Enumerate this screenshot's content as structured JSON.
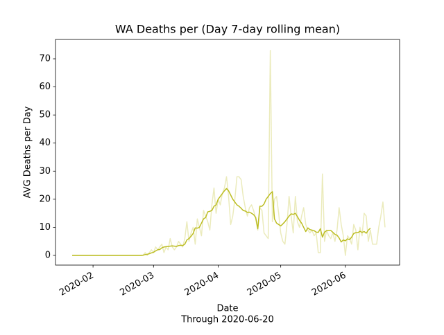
{
  "chart_data": {
    "type": "line",
    "title": "WA Deaths per (Day 7-day rolling mean)",
    "xlabel": "Date",
    "subtitle": "Through 2020-06-20",
    "ylabel": "AVG Deaths per Day",
    "x": [
      "2020-01-22",
      "2020-01-23",
      "2020-01-24",
      "2020-01-25",
      "2020-01-26",
      "2020-01-27",
      "2020-01-28",
      "2020-01-29",
      "2020-01-30",
      "2020-01-31",
      "2020-02-01",
      "2020-02-02",
      "2020-02-03",
      "2020-02-04",
      "2020-02-05",
      "2020-02-06",
      "2020-02-07",
      "2020-02-08",
      "2020-02-09",
      "2020-02-10",
      "2020-02-11",
      "2020-02-12",
      "2020-02-13",
      "2020-02-14",
      "2020-02-15",
      "2020-02-16",
      "2020-02-17",
      "2020-02-18",
      "2020-02-19",
      "2020-02-20",
      "2020-02-21",
      "2020-02-22",
      "2020-02-23",
      "2020-02-24",
      "2020-02-25",
      "2020-02-26",
      "2020-02-27",
      "2020-02-28",
      "2020-02-29",
      "2020-03-01",
      "2020-03-02",
      "2020-03-03",
      "2020-03-04",
      "2020-03-05",
      "2020-03-06",
      "2020-03-07",
      "2020-03-08",
      "2020-03-09",
      "2020-03-10",
      "2020-03-11",
      "2020-03-12",
      "2020-03-13",
      "2020-03-14",
      "2020-03-15",
      "2020-03-16",
      "2020-03-17",
      "2020-03-18",
      "2020-03-19",
      "2020-03-20",
      "2020-03-21",
      "2020-03-22",
      "2020-03-23",
      "2020-03-24",
      "2020-03-25",
      "2020-03-26",
      "2020-03-27",
      "2020-03-28",
      "2020-03-29",
      "2020-03-30",
      "2020-03-31",
      "2020-04-01",
      "2020-04-02",
      "2020-04-03",
      "2020-04-04",
      "2020-04-05",
      "2020-04-06",
      "2020-04-07",
      "2020-04-08",
      "2020-04-09",
      "2020-04-10",
      "2020-04-11",
      "2020-04-12",
      "2020-04-13",
      "2020-04-14",
      "2020-04-15",
      "2020-04-16",
      "2020-04-17",
      "2020-04-18",
      "2020-04-19",
      "2020-04-20",
      "2020-04-21",
      "2020-04-22",
      "2020-04-23",
      "2020-04-24",
      "2020-04-25",
      "2020-04-26",
      "2020-04-27",
      "2020-04-28",
      "2020-04-29",
      "2020-04-30",
      "2020-05-01",
      "2020-05-02",
      "2020-05-03",
      "2020-05-04",
      "2020-05-05",
      "2020-05-06",
      "2020-05-07",
      "2020-05-08",
      "2020-05-09",
      "2020-05-10",
      "2020-05-11",
      "2020-05-12",
      "2020-05-13",
      "2020-05-14",
      "2020-05-15",
      "2020-05-16",
      "2020-05-17",
      "2020-05-18",
      "2020-05-19",
      "2020-05-20",
      "2020-05-21",
      "2020-05-22",
      "2020-05-23",
      "2020-05-24",
      "2020-05-25",
      "2020-05-26",
      "2020-05-27",
      "2020-05-28",
      "2020-05-29",
      "2020-05-30",
      "2020-05-31",
      "2020-06-01",
      "2020-06-02",
      "2020-06-03",
      "2020-06-04",
      "2020-06-05",
      "2020-06-06",
      "2020-06-07",
      "2020-06-08",
      "2020-06-09",
      "2020-06-10",
      "2020-06-11",
      "2020-06-12",
      "2020-06-13",
      "2020-06-14",
      "2020-06-15",
      "2020-06-16",
      "2020-06-17",
      "2020-06-18",
      "2020-06-19",
      "2020-06-20"
    ],
    "series": [
      {
        "color": "#bcbd22",
        "alpha": 0.3,
        "values": [
          0,
          0,
          0,
          0,
          0,
          0,
          0,
          0,
          0,
          0,
          0,
          0,
          0,
          0,
          0,
          0,
          0,
          0,
          0,
          0,
          0,
          0,
          0,
          0,
          0,
          0,
          0,
          0,
          0,
          0,
          0,
          0,
          0,
          0,
          0,
          1,
          0,
          1,
          2,
          1,
          3,
          2,
          3,
          4,
          1,
          3,
          2,
          6,
          3,
          2,
          3,
          5,
          4,
          3,
          6,
          12,
          5,
          8,
          10,
          4,
          13,
          10,
          7,
          16,
          14,
          12,
          9,
          18,
          24,
          15,
          20,
          18,
          22,
          24,
          28,
          21,
          11,
          14,
          20,
          28,
          28,
          27,
          21,
          17,
          14,
          17,
          18,
          16,
          13,
          9,
          17,
          16,
          8,
          7,
          6,
          73,
          12,
          20,
          21,
          15,
          8,
          5,
          4,
          11,
          21,
          14,
          8,
          21,
          12,
          10,
          14,
          17,
          11,
          9,
          8,
          9,
          7,
          8,
          1,
          1,
          29,
          5,
          9,
          7,
          6,
          8,
          5,
          9,
          17,
          11,
          7,
          0,
          7,
          6,
          4,
          11,
          9,
          2,
          10,
          7,
          15,
          14,
          5,
          9,
          4,
          4,
          4,
          10,
          14,
          19,
          10
        ]
      },
      {
        "color": "#bcbd22",
        "alpha": 1,
        "values": [
          0,
          0,
          0,
          0,
          0,
          0,
          0,
          0,
          0,
          0,
          0,
          0,
          0,
          0,
          0,
          0,
          0,
          0,
          0,
          0,
          0,
          0,
          0,
          0,
          0,
          0,
          0,
          0,
          0,
          0,
          0,
          0,
          0,
          0,
          0.1,
          0.3,
          0.4,
          0.6,
          0.9,
          1.1,
          1.6,
          2,
          2.1,
          2.7,
          3,
          3.1,
          3.2,
          3.3,
          3.4,
          3.3,
          3.2,
          3.5,
          3.6,
          3.5,
          4,
          5.5,
          6,
          6.8,
          7.8,
          9.8,
          9.7,
          10,
          11.5,
          13,
          13.5,
          15.5,
          15.7,
          16,
          17.5,
          18,
          20,
          21,
          22,
          23,
          23.8,
          23,
          21.5,
          20,
          19,
          18,
          17.5,
          16.8,
          16,
          15.8,
          15.3,
          15.4,
          15,
          14.5,
          13.5,
          9.5,
          17.5,
          17.5,
          18.3,
          20,
          21,
          22,
          22.7,
          13,
          11.5,
          11,
          10.5,
          11.2,
          12,
          13,
          14,
          14.8,
          14.6,
          15,
          13.8,
          12.5,
          11.5,
          10,
          8.5,
          9.8,
          9.2,
          9,
          8.8,
          8.3,
          8.2,
          9.5,
          6.5,
          8.3,
          8.8,
          8.9,
          8.9,
          8.2,
          7.5,
          7.2,
          6.2,
          4.8,
          5.5,
          5.2,
          5.9,
          5.6,
          6.5,
          7.8,
          8.1,
          8.1,
          8.6,
          8.2,
          8.5,
          7.9,
          9.0,
          9.7,
          null,
          null,
          null,
          null,
          null,
          null,
          null
        ]
      }
    ],
    "xlim": [
      "2020-01-14",
      "2020-06-27"
    ],
    "xticks": [
      {
        "value": "2020-02-01",
        "label": "2020-02"
      },
      {
        "value": "2020-03-01",
        "label": "2020-03"
      },
      {
        "value": "2020-04-01",
        "label": "2020-04"
      },
      {
        "value": "2020-05-01",
        "label": "2020-05"
      },
      {
        "value": "2020-06-01",
        "label": "2020-06"
      }
    ],
    "ylim": [
      -3.45,
      76.9
    ],
    "yticks": [
      0,
      10,
      20,
      30,
      40,
      50,
      60,
      70
    ],
    "grid": false
  }
}
